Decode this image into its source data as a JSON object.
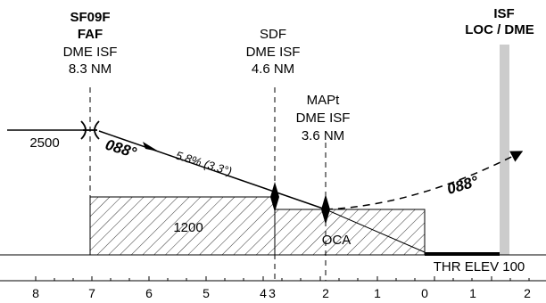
{
  "fixes": {
    "faf": {
      "name": "SF09F",
      "type": "FAF",
      "ref": "DME ISF",
      "dist": "8.3 NM"
    },
    "sdf": {
      "type": "SDF",
      "ref": "DME ISF",
      "dist": "4.6 NM"
    },
    "mapt": {
      "type": "MAPt",
      "ref": "DME ISF",
      "dist": "3.6 NM"
    },
    "isf": {
      "name": "ISF",
      "type": "LOC / DME"
    }
  },
  "altitudes": {
    "initial": "2500",
    "obstacle_clearance": "1200",
    "oca": "OCA"
  },
  "track": {
    "final_heading": "088°",
    "gradient": "5.8% (3.3°)",
    "missed_heading": "088°"
  },
  "threshold": {
    "elev_label": "THR ELEV 100"
  },
  "distance_scale": {
    "ticks": [
      "8",
      "7",
      "6",
      "5",
      "4",
      "3",
      "2",
      "1",
      "0",
      "1",
      "2"
    ]
  },
  "colors": {
    "ink": "#000000",
    "isf_bar": "#cccccc",
    "hatch": "#000000"
  }
}
